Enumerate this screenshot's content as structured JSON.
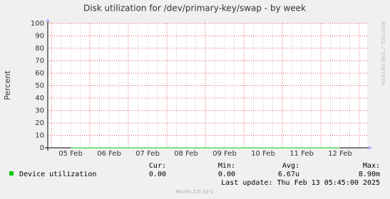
{
  "chart_data": {
    "type": "line",
    "title": "Disk utilization for /dev/primary-key/swap - by week",
    "y_label": "Percent",
    "side_label": "RRDTOOL / TOBI OETIKER",
    "categories": [
      "05 Feb",
      "06 Feb",
      "07 Feb",
      "08 Feb",
      "09 Feb",
      "10 Feb",
      "11 Feb",
      "12 Feb"
    ],
    "series": [
      {
        "name": "Device utilization",
        "color": "#00cc00",
        "values": [
          0,
          0,
          0,
          0,
          0,
          0,
          0,
          0
        ]
      }
    ],
    "ylim": [
      0,
      100
    ],
    "yticks": [
      0,
      10,
      20,
      30,
      40,
      50,
      60,
      70,
      80,
      90,
      100
    ],
    "grid": true,
    "stats": {
      "headers": [
        "Cur:",
        "Min:",
        "Avg:",
        "Max:"
      ],
      "values": [
        "0.00",
        "0.00",
        "6.67u",
        "8.90m"
      ]
    },
    "last_update": "Last update: Thu Feb 13 05:45:00 2025",
    "footer": "Munin 2.0.33-1"
  }
}
